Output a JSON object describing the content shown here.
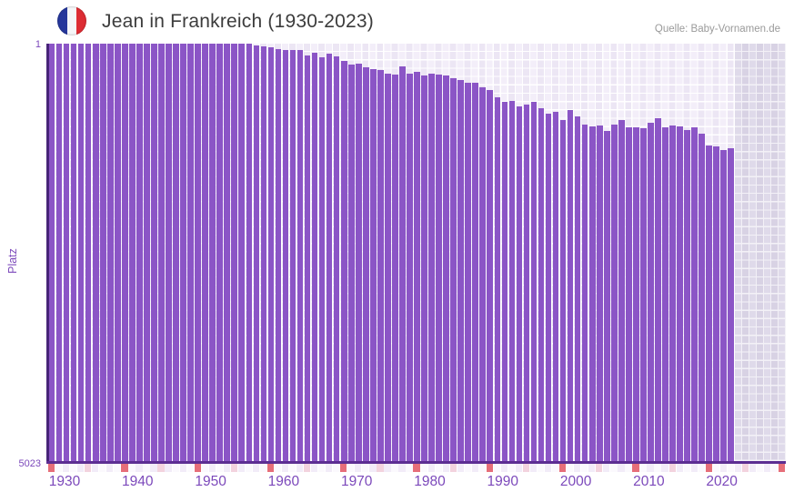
{
  "header": {
    "title": "Jean in Frankreich (1930-2023)",
    "flag_icon": "france-flag-icon",
    "source": "Quelle: Baby-Vornamen.de"
  },
  "y_axis": {
    "label": "Platz",
    "top_tick": "1",
    "bottom_tick": "5023"
  },
  "colors": {
    "bar": "#8b55c6",
    "x_axis_line": "#5c2e92",
    "y_axis_line": "#482479",
    "label_purple": "#7c49bb",
    "title_text": "#3c3c3c",
    "source_text": "#9a9a9a",
    "tick_decade": "#e66e79",
    "tick_half_decade": "#f3d3de",
    "tick_even": "#f2ecf8",
    "tick_odd": "#fbf9fd",
    "grid_cell_a": "#f3eef9",
    "grid_cell_b": "#ece6f4",
    "future_cell_a": "#dfdaea",
    "future_cell_b": "#d8d2e4",
    "flag_blue": "#26379b",
    "flag_red": "#dd2c33"
  },
  "chart_data": {
    "type": "bar",
    "title": "Jean in Frankreich (1930-2023)",
    "xlabel": "",
    "ylabel": "Platz",
    "ylim": [
      1,
      5023
    ],
    "y_axis_inverted": true,
    "y_tick_labels": [
      "1",
      "5023"
    ],
    "x_range_drawn": [
      1930,
      2030
    ],
    "no_data_region": [
      2024,
      2030
    ],
    "x_ticks": [
      1930,
      1940,
      1950,
      1960,
      1970,
      1980,
      1990,
      2000,
      2010,
      2020
    ],
    "grid": true,
    "legend": false,
    "categories": [
      1930,
      1931,
      1932,
      1933,
      1934,
      1935,
      1936,
      1937,
      1938,
      1939,
      1940,
      1941,
      1942,
      1943,
      1944,
      1945,
      1946,
      1947,
      1948,
      1949,
      1950,
      1951,
      1952,
      1953,
      1954,
      1955,
      1956,
      1957,
      1958,
      1959,
      1960,
      1961,
      1962,
      1963,
      1964,
      1965,
      1966,
      1967,
      1968,
      1969,
      1970,
      1971,
      1972,
      1973,
      1974,
      1975,
      1976,
      1977,
      1978,
      1979,
      1980,
      1981,
      1982,
      1983,
      1984,
      1985,
      1986,
      1987,
      1988,
      1989,
      1990,
      1991,
      1992,
      1993,
      1994,
      1995,
      1996,
      1997,
      1998,
      1999,
      2000,
      2001,
      2002,
      2003,
      2004,
      2005,
      2006,
      2007,
      2008,
      2009,
      2010,
      2011,
      2012,
      2013,
      2014,
      2015,
      2016,
      2017,
      2018,
      2019,
      2020,
      2021,
      2022,
      2023
    ],
    "values": [
      1,
      1,
      1,
      1,
      1,
      1,
      1,
      1,
      1,
      1,
      1,
      1,
      1,
      1,
      1,
      1,
      1,
      1,
      1,
      1,
      1,
      1,
      1,
      1,
      1,
      1,
      1,
      1,
      22,
      30,
      48,
      70,
      73,
      73,
      74,
      139,
      113,
      168,
      121,
      157,
      212,
      250,
      239,
      286,
      304,
      322,
      359,
      377,
      278,
      359,
      340,
      388,
      366,
      377,
      379,
      414,
      442,
      469,
      475,
      523,
      559,
      650,
      705,
      688,
      753,
      735,
      698,
      778,
      844,
      825,
      924,
      797,
      877,
      978,
      997,
      989,
      1052,
      972,
      917,
      1008,
      1005,
      1022,
      953,
      895,
      1005,
      989,
      997,
      1041,
      1008,
      1088,
      1227,
      1238,
      1278,
      1263
    ]
  }
}
